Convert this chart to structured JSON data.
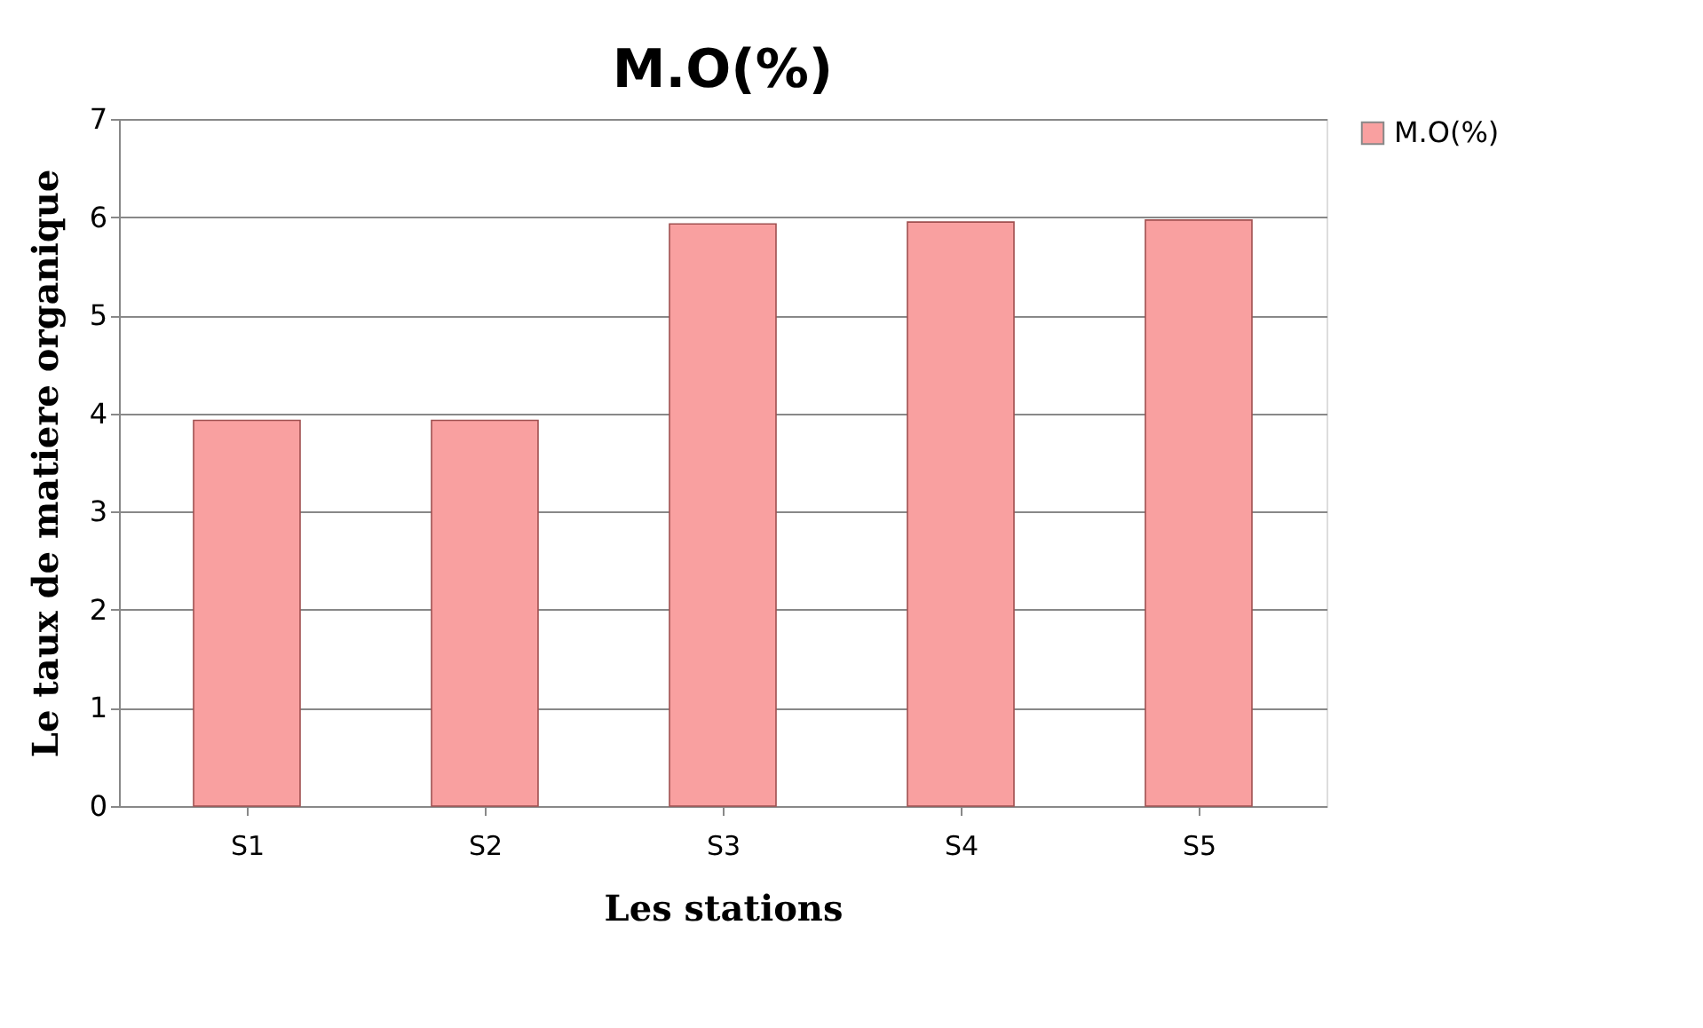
{
  "chart_data": {
    "type": "bar",
    "title": "M.O(%)",
    "xlabel": "Les stations",
    "ylabel": "Le taux de matiere organique",
    "categories": [
      "S1",
      "S2",
      "S3",
      "S4",
      "S5"
    ],
    "series": [
      {
        "name": "M.O(%)",
        "color": "#f9a0a0",
        "values": [
          3.93,
          3.93,
          5.93,
          5.95,
          5.97
        ]
      }
    ],
    "ylim": [
      0,
      7
    ],
    "yticks": [
      0,
      1,
      2,
      3,
      4,
      5,
      6,
      7
    ],
    "grid": "y",
    "legend": "right"
  }
}
